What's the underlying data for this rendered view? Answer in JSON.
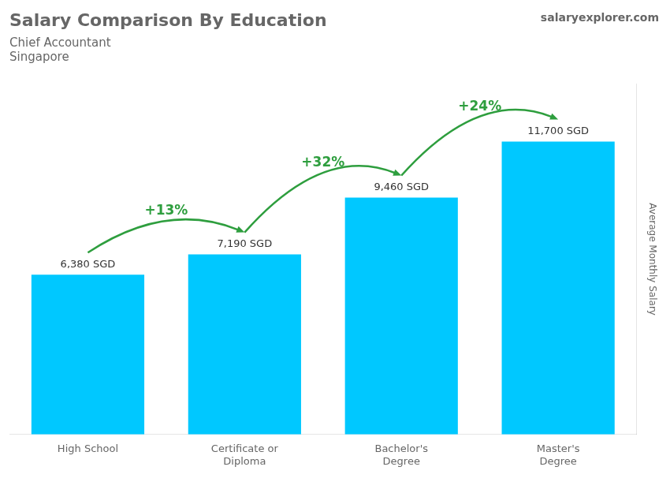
{
  "chart_data": {
    "type": "bar",
    "title": "Salary Comparison By Education",
    "subtitle": [
      "Chief Accountant",
      "Singapore"
    ],
    "ylabel": "Average Monthly Salary",
    "categories": [
      "High School",
      "Certificate or\nDiploma",
      "Bachelor's\nDegree",
      "Master's\nDegree"
    ],
    "values": [
      6380,
      7190,
      9460,
      11700
    ],
    "value_labels": [
      "6,380 SGD",
      "7,190 SGD",
      "9,460 SGD",
      "11,700 SGD"
    ],
    "data_labels": true,
    "color": "#00C8FF",
    "ylim": [
      0,
      14000
    ],
    "grid": false,
    "tick_labels": "x",
    "annotations": [
      {
        "text": "+13%",
        "from": "High School",
        "to": "Certificate or\nDiploma",
        "color": "#2E9E3E"
      },
      {
        "text": "+32%",
        "from": "Certificate or\nDiploma",
        "to": "Bachelor's\nDegree",
        "color": "#2E9E3E"
      },
      {
        "text": "+24%",
        "from": "Bachelor's\nDegree",
        "to": "Master's\nDegree",
        "color": "#2E9E3E"
      },
      {
        "text": "salaryexplorer.com"
      }
    ]
  }
}
